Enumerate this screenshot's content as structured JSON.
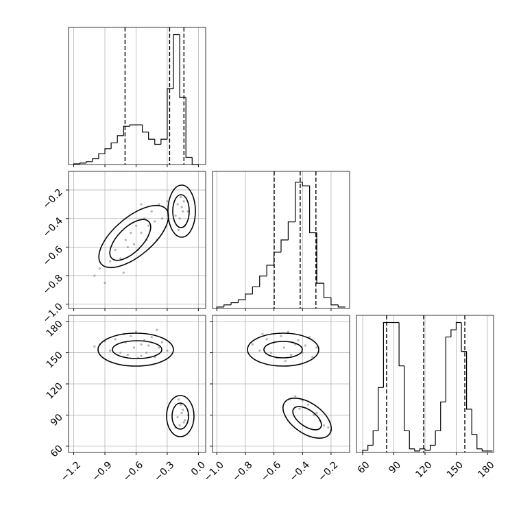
{
  "chart_data": [
    {
      "type": "histogram",
      "bins": [
        -1.2,
        -1.14,
        -1.08,
        -1.02,
        -0.96,
        -0.9,
        -0.84,
        -0.78,
        -0.72,
        -0.66,
        -0.6,
        -0.54,
        -0.48,
        -0.42,
        -0.36,
        -0.3,
        -0.24,
        -0.18,
        -0.12,
        -0.06,
        0.0
      ],
      "values": [
        1,
        2,
        4,
        8,
        15,
        22,
        30,
        40,
        53,
        55,
        55,
        45,
        35,
        28,
        35,
        105,
        180,
        93,
        10,
        0
      ],
      "quantiles": [
        -0.706,
        -0.277,
        -0.139
      ],
      "xlim": [
        -1.25,
        0.07
      ],
      "ylim": [
        0,
        190
      ],
      "grid": true
    },
    {
      "type": "scatter",
      "color": "#808080",
      "x": [
        -0.95,
        -0.85,
        -0.8,
        -0.75,
        -0.7,
        -0.68,
        -0.65,
        -0.62,
        -0.6,
        -0.58,
        -0.55,
        -0.52,
        -0.5,
        -0.48,
        -0.45,
        -0.42,
        -0.38,
        -0.35,
        -0.3,
        -0.9,
        -1.0,
        -0.72,
        -0.55,
        -0.4,
        -0.2,
        -0.18,
        -0.15,
        -0.17,
        -0.13,
        -0.22,
        -0.16,
        -0.19,
        -0.14,
        -0.1
      ],
      "y": [
        -0.75,
        -0.7,
        -0.62,
        -0.68,
        -0.55,
        -0.6,
        -0.5,
        -0.58,
        -0.45,
        -0.62,
        -0.5,
        -0.4,
        -0.55,
        -0.45,
        -0.35,
        -0.42,
        -0.3,
        -0.4,
        -0.28,
        -0.85,
        -0.8,
        -0.78,
        -0.3,
        -0.55,
        -0.3,
        -0.4,
        -0.35,
        -0.25,
        -0.45,
        -0.38,
        -0.32,
        -0.48,
        -0.28,
        -0.35
      ],
      "xlim": [
        -1.25,
        0.07
      ],
      "ylim": [
        -1.03,
        -0.07
      ],
      "yticks": [
        {
          "value": -0.2,
          "label": "−0.2"
        },
        {
          "value": -0.4,
          "label": "−0.4"
        },
        {
          "value": -0.6,
          "label": "−0.6"
        },
        {
          "value": -0.8,
          "label": "−0.8"
        },
        {
          "value": -1.0,
          "label": "−1.0"
        }
      ],
      "grid": true
    },
    {
      "type": "histogram",
      "bins": [
        -1.0,
        -0.95,
        -0.9,
        -0.85,
        -0.8,
        -0.75,
        -0.7,
        -0.65,
        -0.6,
        -0.55,
        -0.5,
        -0.45,
        -0.4,
        -0.35,
        -0.3,
        -0.25,
        -0.2,
        -0.15,
        -0.1
      ],
      "values": [
        2,
        5,
        8,
        12,
        20,
        30,
        45,
        60,
        78,
        95,
        120,
        175,
        170,
        105,
        35,
        15,
        5,
        2
      ],
      "quantiles": [
        -0.598,
        -0.416,
        -0.306
      ],
      "xlim": [
        -1.03,
        -0.07
      ],
      "ylim": [
        0,
        190
      ],
      "grid": true
    },
    {
      "type": "scatter",
      "color": "#808080",
      "x": [
        -0.95,
        -0.85,
        -0.8,
        -0.75,
        -0.7,
        -0.68,
        -0.65,
        -0.62,
        -0.6,
        -0.58,
        -0.55,
        -0.52,
        -0.5,
        -0.48,
        -0.45,
        -0.42,
        -0.38,
        -0.35,
        -0.3,
        -0.9,
        -1.0,
        -0.72,
        -0.55,
        -0.4,
        -0.2,
        -0.18,
        -0.15,
        -0.17,
        -0.13,
        -0.22,
        -0.16,
        -0.19,
        -0.14,
        -0.1
      ],
      "y": [
        158,
        152,
        163,
        150,
        160,
        148,
        166,
        155,
        170,
        145,
        158,
        162,
        150,
        157,
        165,
        146,
        155,
        160,
        152,
        161,
        156,
        168,
        147,
        172,
        88,
        80,
        95,
        100,
        85,
        78,
        92,
        105,
        83,
        90
      ],
      "xlim": [
        -1.25,
        0.07
      ],
      "ylim": [
        54,
        186
      ],
      "xticks": [
        {
          "value": -1.2,
          "label": "−1.2"
        },
        {
          "value": -0.9,
          "label": "−0.9"
        },
        {
          "value": -0.6,
          "label": "−0.6"
        },
        {
          "value": -0.3,
          "label": "−0.3"
        },
        {
          "value": 0,
          "label": "0.0"
        }
      ],
      "yticks": [
        60,
        90,
        120,
        150,
        180
      ],
      "grid": true
    },
    {
      "type": "scatter",
      "color": "#808080",
      "x": [
        -0.75,
        -0.7,
        -0.65,
        -0.62,
        -0.6,
        -0.58,
        -0.55,
        -0.53,
        -0.5,
        -0.48,
        -0.45,
        -0.43,
        -0.4,
        -0.38,
        -0.35,
        -0.33,
        -0.3,
        -0.68,
        -0.52,
        -0.47,
        -0.42,
        -0.36,
        -0.32,
        -0.28,
        -0.25,
        -0.22,
        -0.4,
        -0.45,
        -0.3,
        -0.2
      ],
      "y": [
        158,
        152,
        163,
        150,
        160,
        145,
        166,
        155,
        170,
        148,
        158,
        162,
        150,
        157,
        165,
        146,
        155,
        168,
        142,
        160,
        96,
        100,
        90,
        85,
        80,
        78,
        104,
        108,
        92,
        75
      ],
      "xlim": [
        -1.03,
        -0.07
      ],
      "ylim": [
        54,
        186
      ],
      "xticks": [
        {
          "value": -1.0,
          "label": "−1.0"
        },
        {
          "value": -0.8,
          "label": "−0.8"
        },
        {
          "value": -0.6,
          "label": "−0.6"
        },
        {
          "value": -0.4,
          "label": "−0.4"
        },
        {
          "value": -0.2,
          "label": "−0.2"
        }
      ],
      "grid": true
    },
    {
      "type": "histogram",
      "bins": [
        60,
        65,
        70,
        75,
        80,
        85,
        90,
        95,
        100,
        105,
        110,
        115,
        120,
        125,
        130,
        135,
        140,
        145,
        150,
        155,
        160,
        165,
        170,
        175,
        180,
        185
      ],
      "values": [
        3,
        10,
        30,
        90,
        180,
        180,
        180,
        120,
        30,
        5,
        2,
        5,
        3,
        10,
        30,
        70,
        160,
        170,
        180,
        140,
        60,
        25,
        5,
        2,
        2
      ],
      "quantiles": [
        83,
        118.7,
        158.3
      ],
      "xlim": [
        54,
        186
      ],
      "ylim": [
        0,
        190
      ],
      "xticks": [
        60,
        90,
        120,
        150,
        180
      ],
      "grid": true
    }
  ]
}
